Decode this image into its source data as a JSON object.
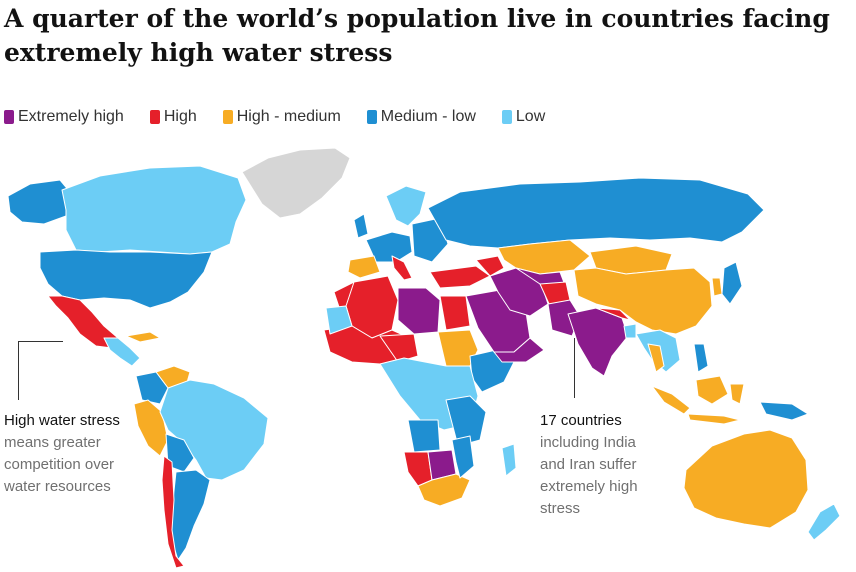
{
  "title": "A quarter of the world’s population live in countries facing extremely high water stress",
  "legend": [
    {
      "label": "Extremely high",
      "color": "#8b1b8c"
    },
    {
      "label": "High",
      "color": "#e5202a"
    },
    {
      "label": "High - medium",
      "color": "#f7ac24"
    },
    {
      "label": "Medium - low",
      "color": "#1f8fd2"
    },
    {
      "label": "Low",
      "color": "#6ccdf5"
    }
  ],
  "no_data_color": "#d6d6d6",
  "annotations": {
    "left": {
      "heading": "High water stress",
      "body": "means greater competition over water resources"
    },
    "right": {
      "heading": "17 countries",
      "body": "including India and Iran suffer extremely high stress"
    }
  }
}
